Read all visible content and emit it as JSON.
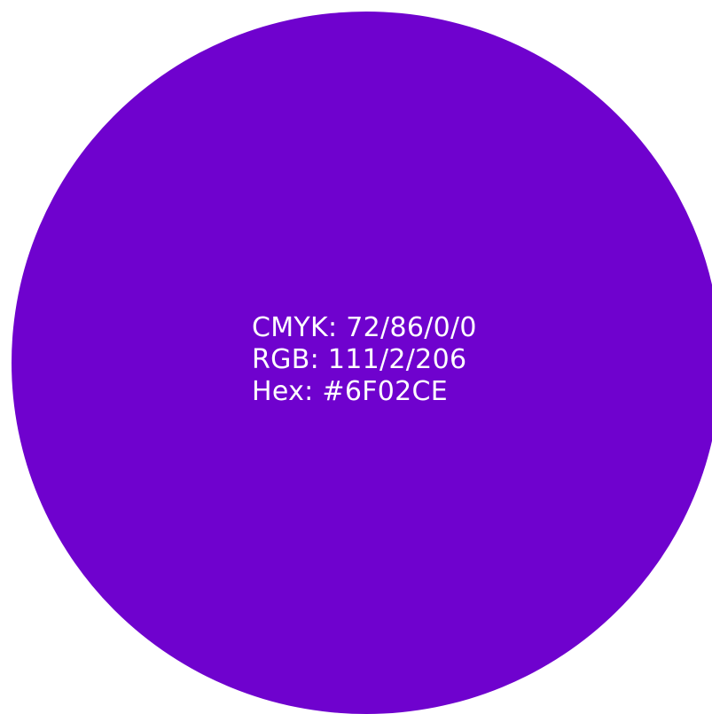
{
  "swatch": {
    "color": "#6F02CE",
    "text_color": "#FFFFFF",
    "lines": {
      "cmyk": "CMYK: 72/86/0/0",
      "rgb": "RGB: 111/2/206",
      "hex": "Hex: #6F02CE"
    }
  }
}
